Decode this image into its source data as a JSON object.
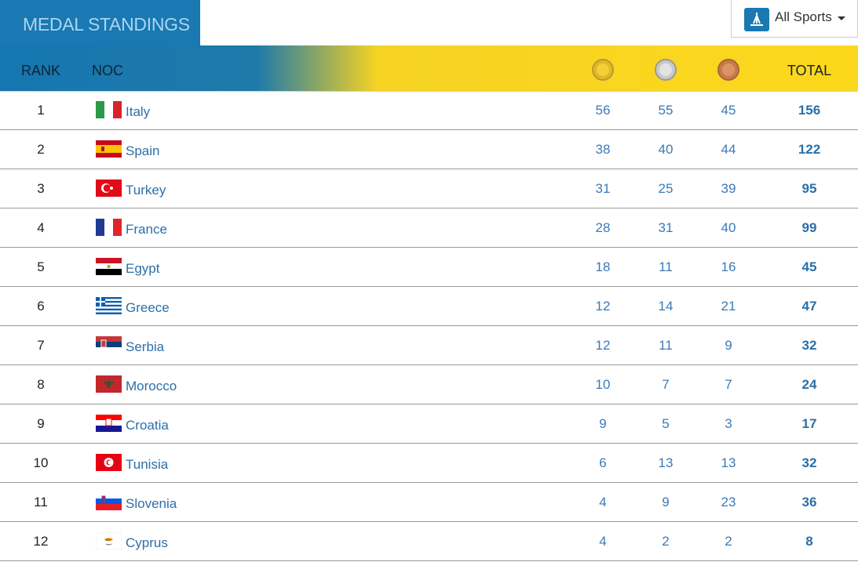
{
  "header": {
    "title": "MEDAL STANDINGS",
    "filter": "All Sports"
  },
  "table": {
    "columns": {
      "rank": "RANK",
      "noc": "NOC",
      "total": "TOTAL"
    },
    "rows": [
      [
        1,
        "Italy",
        56,
        55,
        45,
        156
      ],
      [
        2,
        "Spain",
        38,
        40,
        44,
        122
      ],
      [
        3,
        "Turkey",
        31,
        25,
        39,
        95
      ],
      [
        4,
        "France",
        28,
        31,
        40,
        99
      ],
      [
        5,
        "Egypt",
        18,
        11,
        16,
        45
      ],
      [
        6,
        "Greece",
        12,
        14,
        21,
        47
      ],
      [
        7,
        "Serbia",
        12,
        11,
        9,
        32
      ],
      [
        8,
        "Morocco",
        10,
        7,
        7,
        24
      ],
      [
        9,
        "Croatia",
        9,
        5,
        3,
        17
      ],
      [
        10,
        "Tunisia",
        6,
        13,
        13,
        32
      ],
      [
        11,
        "Slovenia",
        4,
        9,
        23,
        36
      ],
      [
        12,
        "Cyprus",
        4,
        2,
        2,
        8
      ]
    ]
  }
}
